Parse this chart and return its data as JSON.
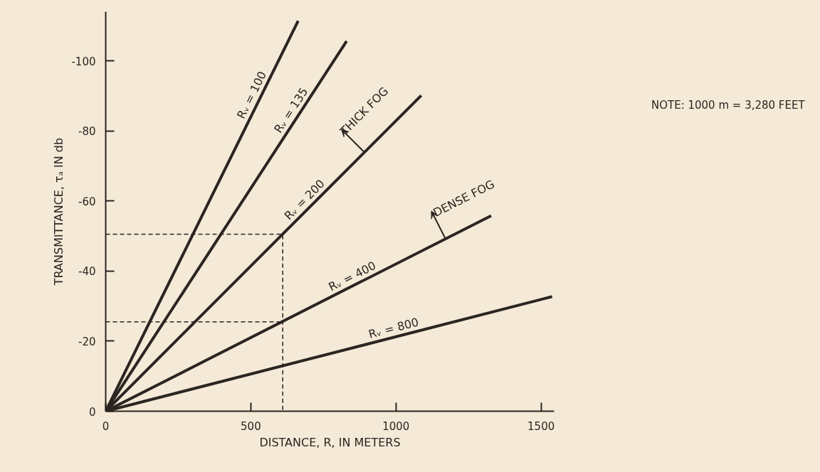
{
  "chart_data": {
    "type": "line",
    "xlabel": "DISTANCE, R, IN METERS",
    "ylabel": "TRANSMITTANCE, τₐ IN db",
    "xlim": [
      0,
      1545
    ],
    "ylim": [
      0,
      -114
    ],
    "xticks": [
      0,
      500,
      1000,
      1500
    ],
    "yticks": [
      0,
      -20,
      -40,
      -60,
      -80,
      -100
    ],
    "grid": false,
    "marker": "none",
    "line_style": "solid",
    "series": [
      {
        "name": "Rᵥ = 100",
        "color": "#2b2522",
        "x": [
          0,
          663
        ],
        "values": [
          0,
          -111.4
        ]
      },
      {
        "name": "Rᵥ = 135",
        "color": "#2b2522",
        "x": [
          0,
          830
        ],
        "values": [
          0,
          -105.6
        ]
      },
      {
        "name": "Rᵥ = 200",
        "color": "#2b2522",
        "x": [
          0,
          1087
        ],
        "values": [
          0,
          -90.1
        ]
      },
      {
        "name": "Rᵥ = 400",
        "color": "#2b2522",
        "x": [
          0,
          1328
        ],
        "values": [
          0,
          -55.8
        ]
      },
      {
        "name": "Rᵥ = 800",
        "color": "#2b2522",
        "x": [
          0,
          1538
        ],
        "values": [
          0,
          -32.7
        ]
      },
      {
        "color": "#2b2522",
        "line_style": "dashed",
        "x": [
          0,
          610,
          610
        ],
        "values": [
          -50.5,
          -50.5,
          0
        ]
      },
      {
        "color": "#2b2522",
        "line_style": "dashed",
        "x": [
          0,
          610
        ],
        "values": [
          -25.5,
          -25.5
        ]
      }
    ],
    "annotations": [
      {
        "text": "THICK FOG",
        "x": 890,
        "y": -74
      },
      {
        "text": "DENSE FOG",
        "x": 1172,
        "y": -49
      },
      "NOTE:  1000 m = 3,280 FEET"
    ]
  }
}
